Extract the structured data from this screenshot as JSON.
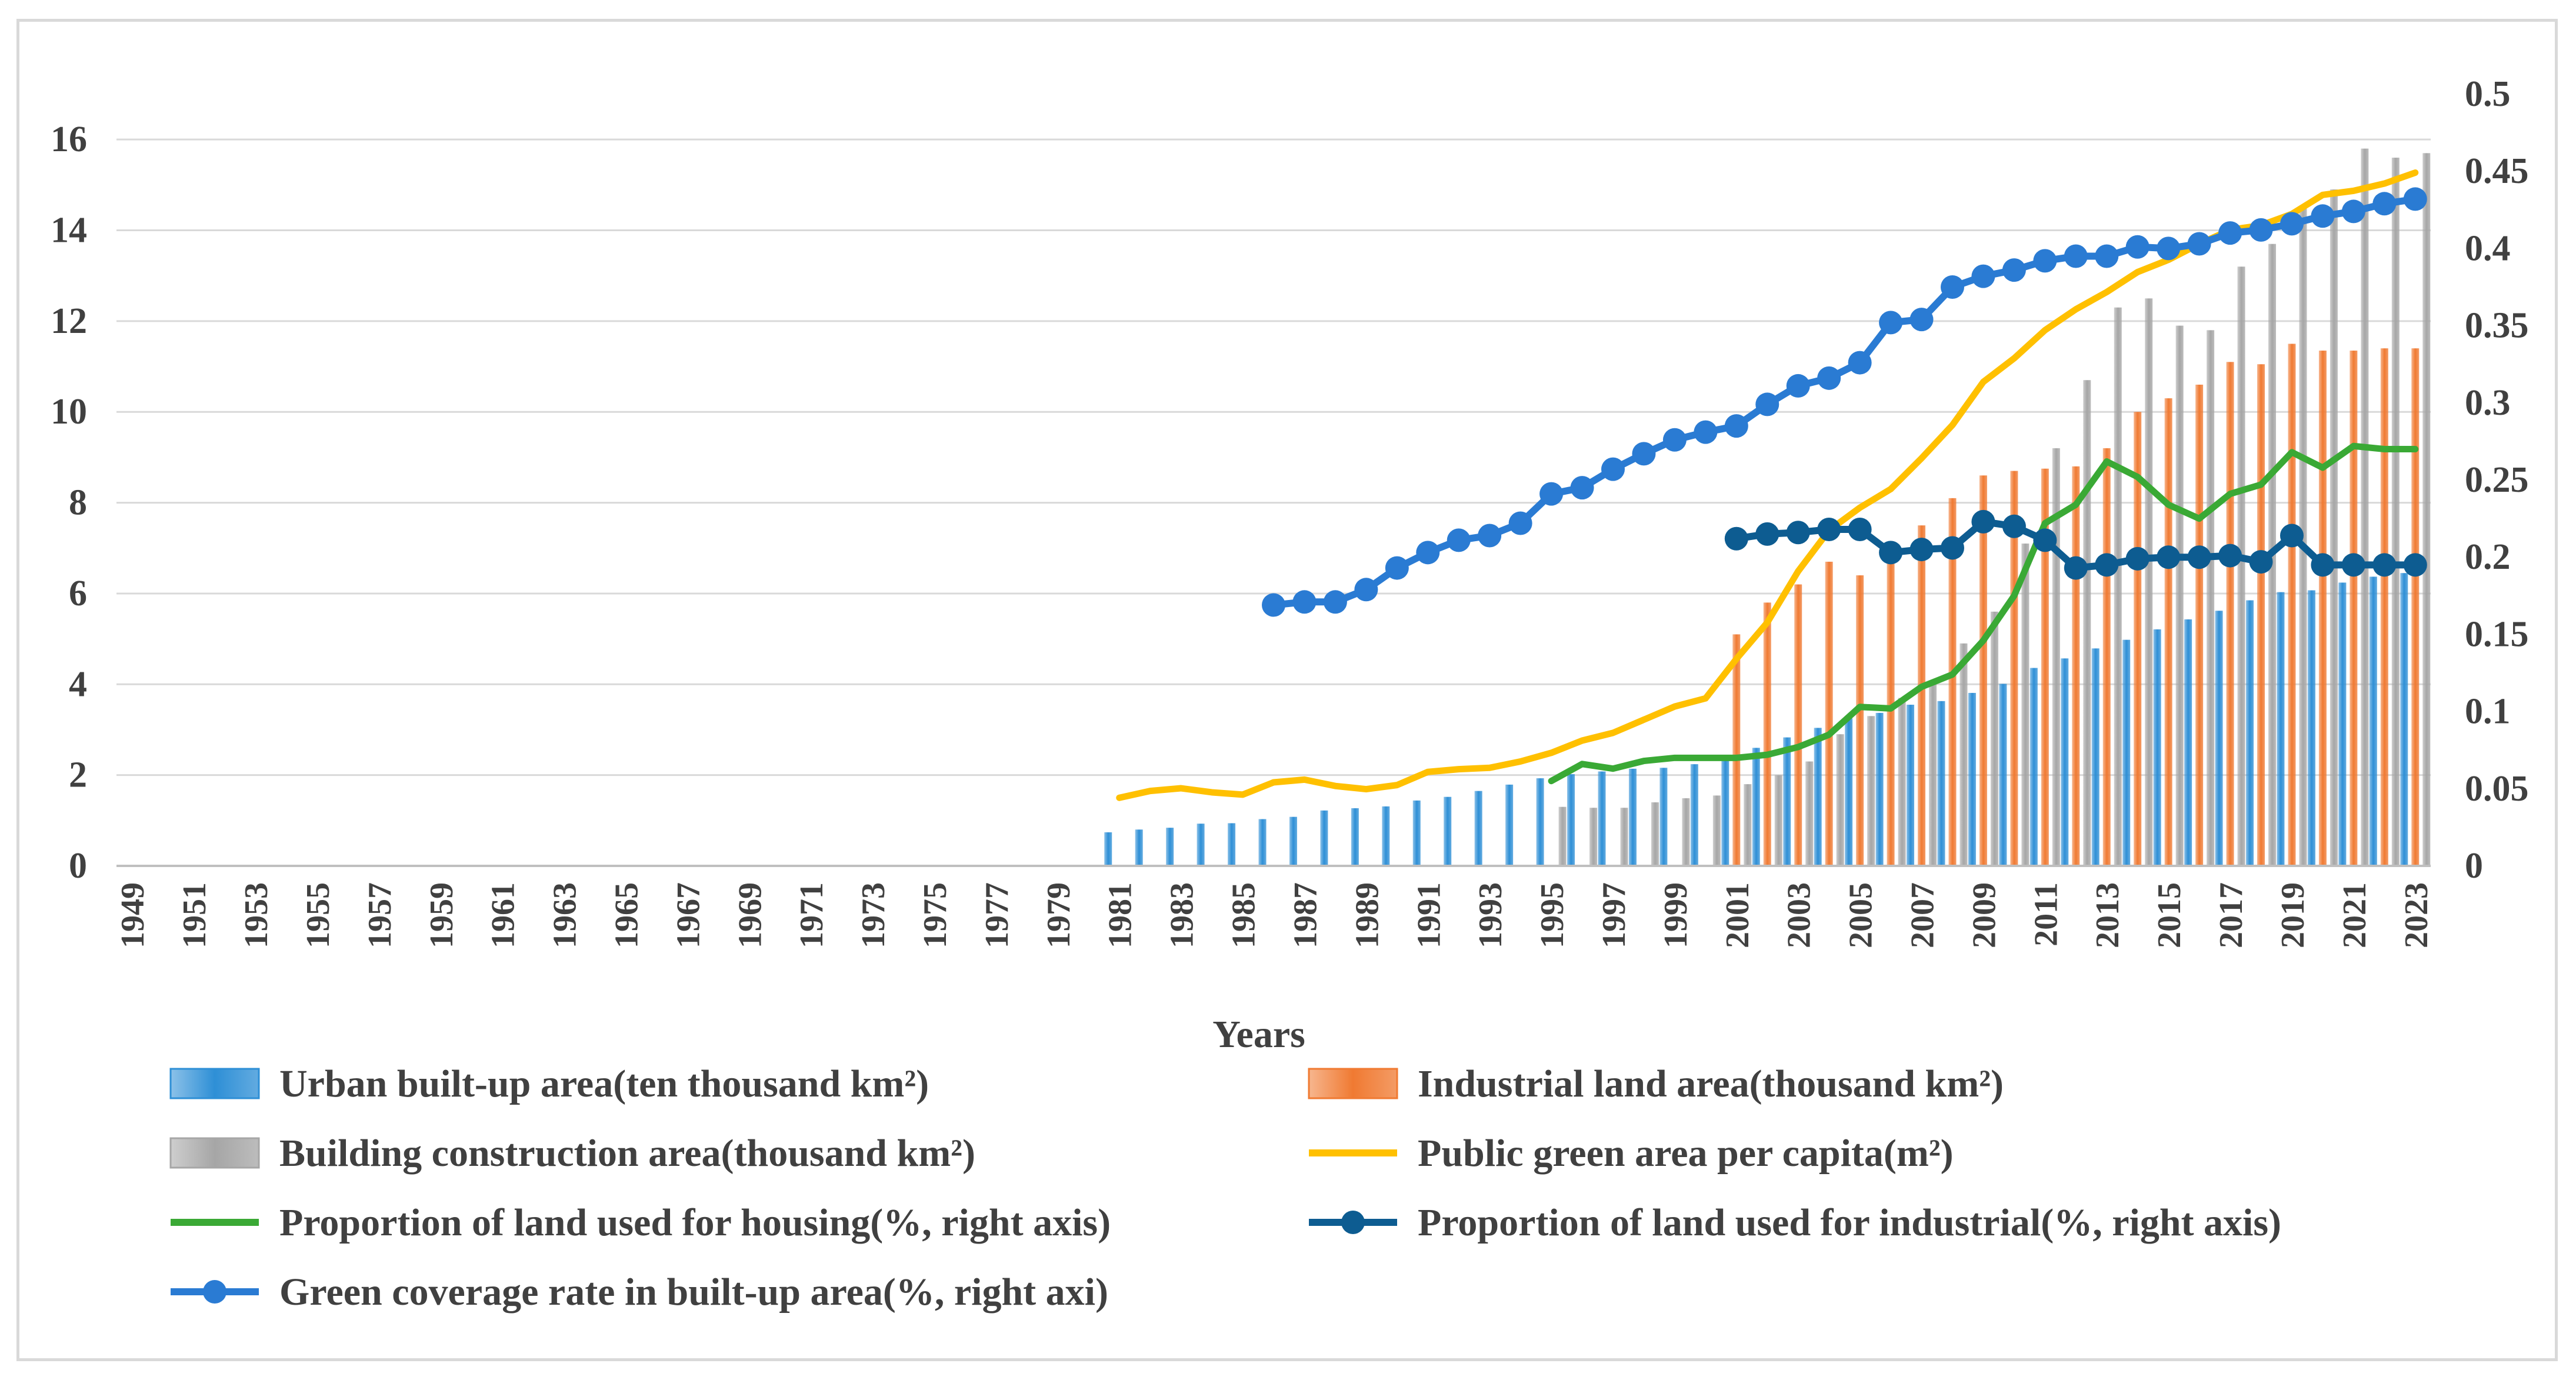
{
  "chart_data": {
    "type": "bar",
    "title": "",
    "xlabel": "Years",
    "ylabel": "",
    "y2label": "",
    "ylim": [
      0,
      17
    ],
    "y2lim": [
      0,
      0.5
    ],
    "yticks": [
      0,
      2,
      4,
      6,
      8,
      10,
      12,
      14,
      16
    ],
    "y2ticks": [
      0,
      0.05,
      0.1,
      0.15,
      0.2,
      0.25,
      0.3,
      0.35,
      0.4,
      0.45,
      0.5
    ],
    "y2tick_labels": [
      "0",
      "0.05",
      "0.1",
      "0.15",
      "0.2",
      "0.25",
      "0.3",
      "0.35",
      "0.4",
      "0.45",
      "0.5"
    ],
    "grid": true,
    "legend_position": "bottom",
    "categories": [
      1949,
      1950,
      1951,
      1952,
      1953,
      1954,
      1955,
      1956,
      1957,
      1958,
      1959,
      1960,
      1961,
      1962,
      1963,
      1964,
      1965,
      1966,
      1967,
      1968,
      1969,
      1970,
      1971,
      1972,
      1973,
      1974,
      1975,
      1976,
      1977,
      1978,
      1979,
      1980,
      1981,
      1982,
      1983,
      1984,
      1985,
      1986,
      1987,
      1988,
      1989,
      1990,
      1991,
      1992,
      1993,
      1994,
      1995,
      1996,
      1997,
      1998,
      1999,
      2000,
      2001,
      2002,
      2003,
      2004,
      2005,
      2006,
      2007,
      2008,
      2009,
      2010,
      2011,
      2012,
      2013,
      2014,
      2015,
      2016,
      2017,
      2018,
      2019,
      2020,
      2021,
      2022,
      2023
    ],
    "tick_labels": [
      "1949",
      "1951",
      "1953",
      "1955",
      "1957",
      "1959",
      "1961",
      "1963",
      "1965",
      "1967",
      "1969",
      "1971",
      "1973",
      "1975",
      "1977",
      "1979",
      "1981",
      "1983",
      "1985",
      "1987",
      "1989",
      "1991",
      "1993",
      "1995",
      "1997",
      "1999",
      "2001",
      "2003",
      "2005",
      "2007",
      "2009",
      "2011",
      "2013",
      "2015",
      "2017",
      "2019",
      "2021",
      "2023"
    ],
    "series": [
      {
        "name": "Urban built-up area(ten thousand km²)",
        "type": "bar",
        "axis": "left",
        "color": "#2e8fd6",
        "x": [
          1981,
          1982,
          1983,
          1984,
          1985,
          1986,
          1987,
          1988,
          1989,
          1990,
          1991,
          1992,
          1993,
          1994,
          1995,
          1996,
          1997,
          1998,
          1999,
          2000,
          2001,
          2002,
          2003,
          2004,
          2005,
          2006,
          2007,
          2008,
          2009,
          2010,
          2011,
          2012,
          2013,
          2014,
          2015,
          2016,
          2017,
          2018,
          2019,
          2020,
          2021,
          2022,
          2023
        ],
        "values": [
          0.74,
          0.8,
          0.84,
          0.93,
          0.94,
          1.03,
          1.08,
          1.22,
          1.27,
          1.31,
          1.44,
          1.52,
          1.65,
          1.79,
          1.93,
          2.02,
          2.08,
          2.14,
          2.16,
          2.24,
          2.4,
          2.6,
          2.83,
          3.04,
          3.25,
          3.37,
          3.55,
          3.63,
          3.81,
          4.01,
          4.36,
          4.57,
          4.79,
          4.98,
          5.21,
          5.43,
          5.62,
          5.85,
          6.03,
          6.07,
          6.24,
          6.37,
          6.45
        ]
      },
      {
        "name": "Industrial land area(thousand km²)",
        "type": "bar",
        "axis": "left",
        "color": "#f07a32",
        "x": [
          2001,
          2002,
          2003,
          2004,
          2005,
          2006,
          2007,
          2008,
          2009,
          2010,
          2011,
          2012,
          2013,
          2014,
          2015,
          2016,
          2017,
          2018,
          2019,
          2020,
          2021,
          2022,
          2023
        ],
        "values": [
          5.1,
          5.8,
          6.2,
          6.7,
          6.4,
          6.9,
          7.5,
          8.1,
          8.6,
          8.7,
          8.75,
          8.8,
          9.2,
          10.0,
          10.3,
          10.6,
          11.1,
          11.05,
          11.5,
          11.35,
          11.35,
          11.4,
          11.4
        ]
      },
      {
        "name": "Building construction area(thousand km²)",
        "type": "bar",
        "axis": "left",
        "color": "#a6a6a6",
        "x": [
          1995,
          1996,
          1997,
          1998,
          1999,
          2000,
          2001,
          2002,
          2003,
          2004,
          2005,
          2006,
          2007,
          2008,
          2009,
          2010,
          2011,
          2012,
          2013,
          2014,
          2015,
          2016,
          2017,
          2018,
          2019,
          2020,
          2021,
          2022,
          2023
        ],
        "values": [
          1.3,
          1.28,
          1.28,
          1.4,
          1.49,
          1.55,
          1.8,
          2.0,
          2.3,
          2.9,
          3.3,
          3.7,
          4.0,
          4.9,
          5.6,
          7.1,
          9.2,
          10.7,
          12.3,
          12.5,
          11.9,
          11.8,
          13.2,
          13.7,
          14.5,
          14.9,
          15.8,
          15.6,
          15.7
        ]
      },
      {
        "name": "Public green area per capita(m²)",
        "type": "line",
        "axis": "left",
        "color": "#ffc000",
        "marker": false,
        "x": [
          1981,
          1982,
          1983,
          1984,
          1985,
          1986,
          1987,
          1988,
          1989,
          1990,
          1991,
          1992,
          1993,
          1994,
          1995,
          1996,
          1997,
          1998,
          1999,
          2000,
          2001,
          2002,
          2003,
          2004,
          2005,
          2006,
          2007,
          2008,
          2009,
          2010,
          2011,
          2012,
          2013,
          2014,
          2015,
          2016,
          2017,
          2018,
          2019,
          2020,
          2021,
          2022,
          2023
        ],
        "values": [
          1.5,
          1.65,
          1.71,
          1.62,
          1.57,
          1.84,
          1.9,
          1.76,
          1.69,
          1.78,
          2.07,
          2.13,
          2.16,
          2.3,
          2.49,
          2.76,
          2.93,
          3.22,
          3.51,
          3.69,
          4.56,
          5.36,
          6.49,
          7.39,
          7.89,
          8.3,
          8.98,
          9.71,
          10.66,
          11.18,
          11.8,
          12.26,
          12.64,
          13.08,
          13.35,
          13.7,
          14.01,
          14.11,
          14.36,
          14.78,
          14.87,
          15.03,
          15.27
        ]
      },
      {
        "name": "Proportion of land used for housing(%, right axis)",
        "type": "line",
        "axis": "right",
        "color": "#3aa935",
        "marker": false,
        "x": [
          1995,
          1996,
          1997,
          1998,
          1999,
          2000,
          2001,
          2002,
          2003,
          2004,
          2005,
          2006,
          2007,
          2008,
          2009,
          2010,
          2011,
          2012,
          2013,
          2014,
          2015,
          2016,
          2017,
          2018,
          2019,
          2020,
          2021,
          2022,
          2023
        ],
        "values": [
          0.055,
          0.066,
          0.063,
          0.068,
          0.07,
          0.07,
          0.07,
          0.072,
          0.077,
          0.085,
          0.103,
          0.102,
          0.116,
          0.124,
          0.146,
          0.175,
          0.222,
          0.234,
          0.262,
          0.252,
          0.234,
          0.225,
          0.241,
          0.247,
          0.268,
          0.258,
          0.272,
          0.27,
          0.27
        ]
      },
      {
        "name": "Proportion of land used for industrial(%, right axis)",
        "type": "line",
        "axis": "right",
        "color": "#0d5c91",
        "marker": true,
        "x": [
          2001,
          2002,
          2003,
          2004,
          2005,
          2006,
          2007,
          2008,
          2009,
          2010,
          2011,
          2012,
          2013,
          2014,
          2015,
          2016,
          2017,
          2018,
          2019,
          2020,
          2021,
          2022,
          2023
        ],
        "values": [
          0.212,
          0.215,
          0.216,
          0.218,
          0.218,
          0.203,
          0.205,
          0.206,
          0.223,
          0.22,
          0.211,
          0.193,
          0.195,
          0.199,
          0.2,
          0.2,
          0.201,
          0.197,
          0.214,
          0.195,
          0.195,
          0.195,
          0.195
        ]
      },
      {
        "name": "Green coverage rate in built-up area(%, right axi)",
        "type": "line",
        "axis": "right",
        "color": "#2a7bd3",
        "marker": true,
        "x": [
          1986,
          1987,
          1988,
          1989,
          1990,
          1991,
          1992,
          1993,
          1994,
          1995,
          1996,
          1997,
          1998,
          1999,
          2000,
          2001,
          2002,
          2003,
          2004,
          2005,
          2006,
          2007,
          2008,
          2009,
          2010,
          2011,
          2012,
          2013,
          2014,
          2015,
          2016,
          2017,
          2018,
          2019,
          2020,
          2021,
          2022,
          2023
        ],
        "values": [
          0.169,
          0.171,
          0.171,
          0.179,
          0.193,
          0.203,
          0.211,
          0.214,
          0.222,
          0.241,
          0.245,
          0.257,
          0.267,
          0.276,
          0.281,
          0.285,
          0.299,
          0.311,
          0.316,
          0.326,
          0.352,
          0.354,
          0.375,
          0.382,
          0.386,
          0.392,
          0.395,
          0.395,
          0.401,
          0.4,
          0.403,
          0.41,
          0.412,
          0.416,
          0.421,
          0.424,
          0.429,
          0.432
        ]
      }
    ]
  }
}
